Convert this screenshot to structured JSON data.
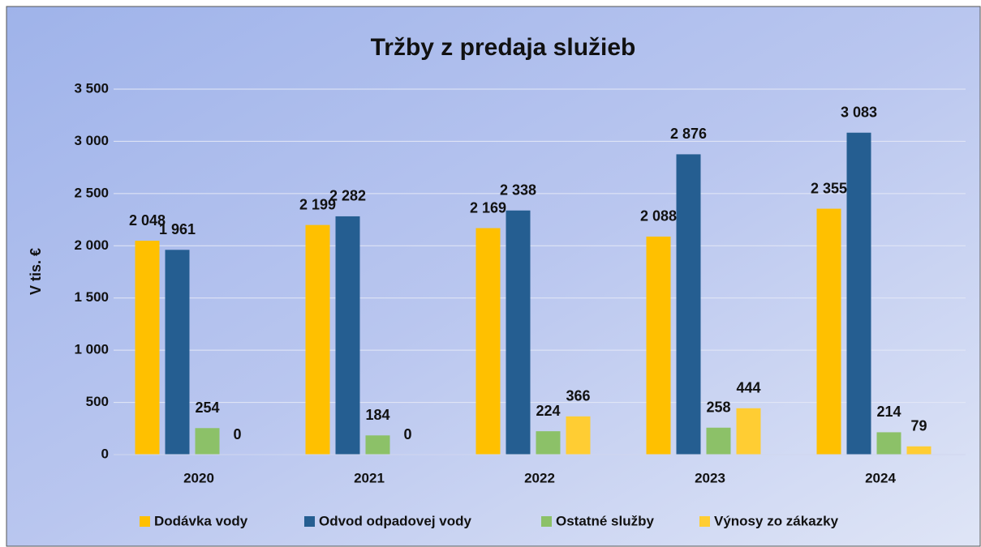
{
  "chart_data": {
    "type": "bar",
    "title": "Tržby z predaja služieb",
    "y_label": "V tis. €",
    "categories": [
      "2020",
      "2021",
      "2022",
      "2023",
      "2024"
    ],
    "series": [
      {
        "name": "Dodávka vody",
        "color": "#ffc000",
        "values": [
          2048,
          2199,
          2169,
          2088,
          2355
        ],
        "value_labels": [
          "2 048",
          "2 199",
          "2 169",
          "2 088",
          "2 355"
        ]
      },
      {
        "name": "Odvod odpadovej vody",
        "color": "#255e91",
        "values": [
          1961,
          2282,
          2338,
          2876,
          3083
        ],
        "value_labels": [
          "1 961",
          "2 282",
          "2 338",
          "2 876",
          "3 083"
        ]
      },
      {
        "name": "Ostatné služby",
        "color": "#8cc168",
        "values": [
          254,
          184,
          224,
          258,
          214
        ],
        "value_labels": [
          "254",
          "184",
          "224",
          "258",
          "214"
        ]
      },
      {
        "name": "Výnosy zo zákazky",
        "color": "#ffcd33",
        "values": [
          0,
          0,
          366,
          444,
          79
        ],
        "value_labels": [
          "0",
          "0",
          "366",
          "444",
          "79"
        ]
      }
    ],
    "ylim": [
      0,
      3500
    ],
    "yticks": [
      0,
      500,
      {
        "value": 1000,
        "label": "1 000"
      },
      {
        "value": 1500,
        "label": "1 500"
      },
      {
        "value": 2000,
        "label": "2 000"
      },
      {
        "value": 2500,
        "label": "2 500"
      },
      {
        "value": 3000,
        "label": "3 000"
      },
      {
        "value": 3500,
        "label": "3 500"
      }
    ],
    "grid": true,
    "legend": "bottom"
  }
}
